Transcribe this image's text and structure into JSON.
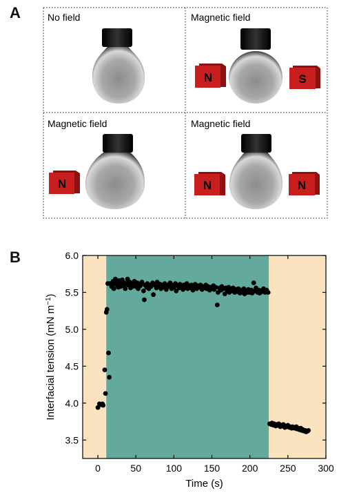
{
  "panel_a": {
    "letter": "A",
    "cells": [
      {
        "label": "No field",
        "magnets": []
      },
      {
        "label": "Magnetic field",
        "magnets": [
          "N",
          "S"
        ]
      },
      {
        "label": "Magnetic field",
        "magnets": [
          "N"
        ]
      },
      {
        "label": "Magnetic field",
        "magnets": [
          "N",
          "N"
        ]
      }
    ],
    "colors": {
      "magnet": "#c81e1e",
      "nozzle": "#111111",
      "border": "#444444"
    }
  },
  "panel_b": {
    "letter": "B"
  },
  "chart_data": {
    "type": "scatter",
    "xlabel": "Time (s)",
    "ylabel": "Interfacial tension (mN m",
    "ylabel_sup": "−1",
    "ylabel_end": ")",
    "xlim": [
      -20,
      300
    ],
    "ylim": [
      3.25,
      6.0
    ],
    "xticks": [
      0,
      50,
      100,
      150,
      200,
      250,
      300
    ],
    "yticks": [
      3.5,
      4.0,
      4.5,
      5.0,
      5.5,
      6.0
    ],
    "xticklabels": [
      "0",
      "50",
      "100",
      "150",
      "200",
      "250",
      "300"
    ],
    "yticklabels": [
      "3.5",
      "4.0",
      "4.5",
      "5.0",
      "5.5",
      "6.0"
    ],
    "background_regions": [
      {
        "from": -20,
        "to": 11,
        "color": "#fce3c0"
      },
      {
        "from": 11,
        "to": 225,
        "color": "#63a99c"
      },
      {
        "from": 225,
        "to": 300,
        "color": "#fce3c0"
      }
    ],
    "series": [
      {
        "color": "#000000",
        "points": [
          [
            0,
            3.94
          ],
          [
            2,
            3.99
          ],
          [
            4,
            3.98
          ],
          [
            6,
            3.99
          ],
          [
            7,
            3.97
          ],
          [
            9,
            4.45
          ],
          [
            10,
            4.13
          ],
          [
            11,
            5.23
          ],
          [
            12,
            5.27
          ],
          [
            13,
            5.62
          ],
          [
            14,
            4.68
          ],
          [
            15,
            4.35
          ],
          [
            16,
            5.62
          ],
          [
            18,
            5.58
          ],
          [
            19,
            5.6
          ],
          [
            20,
            5.65
          ],
          [
            21,
            5.55
          ],
          [
            22,
            5.62
          ],
          [
            23,
            5.68
          ],
          [
            25,
            5.6
          ],
          [
            26,
            5.64
          ],
          [
            27,
            5.57
          ],
          [
            28,
            5.66
          ],
          [
            30,
            5.58
          ],
          [
            31,
            5.61
          ],
          [
            32,
            5.67
          ],
          [
            34,
            5.59
          ],
          [
            35,
            5.63
          ],
          [
            36,
            5.55
          ],
          [
            38,
            5.62
          ],
          [
            39,
            5.68
          ],
          [
            40,
            5.6
          ],
          [
            42,
            5.64
          ],
          [
            43,
            5.56
          ],
          [
            45,
            5.62
          ],
          [
            46,
            5.58
          ],
          [
            48,
            5.65
          ],
          [
            49,
            5.6
          ],
          [
            50,
            5.58
          ],
          [
            52,
            5.63
          ],
          [
            53,
            5.55
          ],
          [
            55,
            5.61
          ],
          [
            56,
            5.59
          ],
          [
            58,
            5.64
          ],
          [
            60,
            5.52
          ],
          [
            61,
            5.4
          ],
          [
            62,
            5.6
          ],
          [
            64,
            5.57
          ],
          [
            65,
            5.62
          ],
          [
            67,
            5.55
          ],
          [
            68,
            5.6
          ],
          [
            70,
            5.58
          ],
          [
            72,
            5.63
          ],
          [
            73,
            5.47
          ],
          [
            75,
            5.6
          ],
          [
            77,
            5.56
          ],
          [
            78,
            5.64
          ],
          [
            80,
            5.58
          ],
          [
            82,
            5.61
          ],
          [
            83,
            5.55
          ],
          [
            85,
            5.6
          ],
          [
            87,
            5.57
          ],
          [
            88,
            5.62
          ],
          [
            90,
            5.54
          ],
          [
            92,
            5.6
          ],
          [
            93,
            5.58
          ],
          [
            95,
            5.63
          ],
          [
            97,
            5.55
          ],
          [
            98,
            5.6
          ],
          [
            100,
            5.57
          ],
          [
            102,
            5.62
          ],
          [
            103,
            5.52
          ],
          [
            105,
            5.59
          ],
          [
            107,
            5.56
          ],
          [
            108,
            5.61
          ],
          [
            110,
            5.58
          ],
          [
            112,
            5.54
          ],
          [
            113,
            5.6
          ],
          [
            115,
            5.57
          ],
          [
            117,
            5.62
          ],
          [
            118,
            5.55
          ],
          [
            120,
            5.59
          ],
          [
            122,
            5.56
          ],
          [
            123,
            5.6
          ],
          [
            125,
            5.53
          ],
          [
            127,
            5.58
          ],
          [
            128,
            5.61
          ],
          [
            130,
            5.55
          ],
          [
            132,
            5.59
          ],
          [
            133,
            5.57
          ],
          [
            135,
            5.6
          ],
          [
            137,
            5.54
          ],
          [
            138,
            5.58
          ],
          [
            140,
            5.56
          ],
          [
            142,
            5.6
          ],
          [
            143,
            5.55
          ],
          [
            145,
            5.58
          ],
          [
            147,
            5.53
          ],
          [
            148,
            5.57
          ],
          [
            150,
            5.55
          ],
          [
            152,
            5.59
          ],
          [
            153,
            5.54
          ],
          [
            155,
            5.57
          ],
          [
            157,
            5.33
          ],
          [
            158,
            5.5
          ],
          [
            160,
            5.56
          ],
          [
            162,
            5.53
          ],
          [
            163,
            5.58
          ],
          [
            165,
            5.55
          ],
          [
            167,
            5.48
          ],
          [
            168,
            5.56
          ],
          [
            170,
            5.53
          ],
          [
            172,
            5.57
          ],
          [
            173,
            5.5
          ],
          [
            175,
            5.55
          ],
          [
            177,
            5.52
          ],
          [
            178,
            5.56
          ],
          [
            180,
            5.5
          ],
          [
            182,
            5.54
          ],
          [
            183,
            5.51
          ],
          [
            185,
            5.55
          ],
          [
            187,
            5.49
          ],
          [
            188,
            5.53
          ],
          [
            190,
            5.5
          ],
          [
            192,
            5.55
          ],
          [
            193,
            5.48
          ],
          [
            195,
            5.52
          ],
          [
            197,
            5.5
          ],
          [
            198,
            5.54
          ],
          [
            200,
            5.5
          ],
          [
            202,
            5.53
          ],
          [
            203,
            5.49
          ],
          [
            205,
            5.63
          ],
          [
            207,
            5.52
          ],
          [
            208,
            5.56
          ],
          [
            210,
            5.5
          ],
          [
            212,
            5.53
          ],
          [
            213,
            5.49
          ],
          [
            215,
            5.52
          ],
          [
            217,
            5.51
          ],
          [
            218,
            5.55
          ],
          [
            220,
            5.5
          ],
          [
            222,
            5.53
          ],
          [
            224,
            5.5
          ],
          [
            226,
            3.72
          ],
          [
            228,
            3.71
          ],
          [
            229,
            3.73
          ],
          [
            231,
            3.7
          ],
          [
            232,
            3.72
          ],
          [
            234,
            3.69
          ],
          [
            235,
            3.71
          ],
          [
            237,
            3.7
          ],
          [
            238,
            3.72
          ],
          [
            240,
            3.68
          ],
          [
            241,
            3.7
          ],
          [
            243,
            3.69
          ],
          [
            244,
            3.71
          ],
          [
            246,
            3.67
          ],
          [
            247,
            3.69
          ],
          [
            249,
            3.68
          ],
          [
            250,
            3.7
          ],
          [
            252,
            3.67
          ],
          [
            253,
            3.68
          ],
          [
            255,
            3.66
          ],
          [
            256,
            3.68
          ],
          [
            258,
            3.67
          ],
          [
            259,
            3.66
          ],
          [
            261,
            3.68
          ],
          [
            262,
            3.65
          ],
          [
            264,
            3.66
          ],
          [
            265,
            3.64
          ],
          [
            267,
            3.66
          ],
          [
            268,
            3.63
          ],
          [
            270,
            3.64
          ],
          [
            271,
            3.62
          ],
          [
            273,
            3.63
          ],
          [
            274,
            3.61
          ],
          [
            276,
            3.62
          ],
          [
            277,
            3.63
          ]
        ]
      }
    ]
  }
}
